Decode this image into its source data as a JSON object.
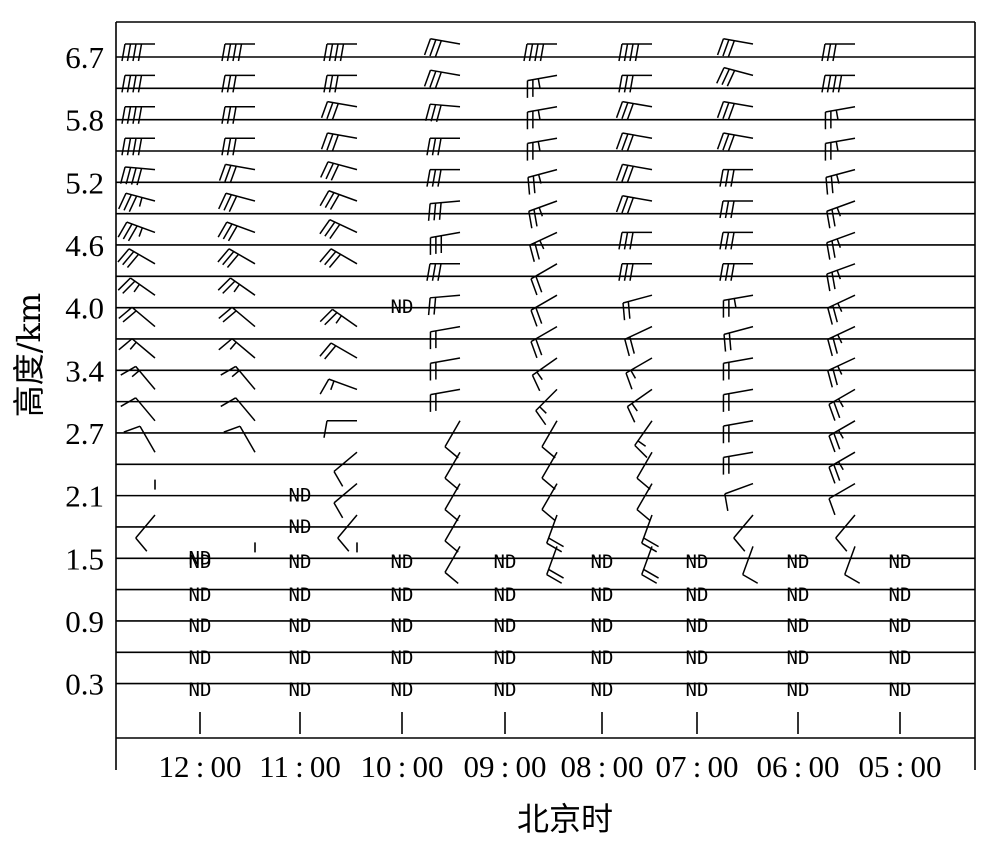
{
  "chart_data": {
    "type": "wind-profile",
    "title": "",
    "xlabel": "北京时",
    "ylabel": "高度/km",
    "x_categories": [
      "12:00",
      "11:00",
      "10:00",
      "09:00",
      "08:00",
      "07:00",
      "06:00",
      "05:00"
    ],
    "y_tick_labels": [
      "6.7",
      "5.8",
      "5.2",
      "4.6",
      "4.0",
      "3.4",
      "2.7",
      "2.1",
      "1.5",
      "0.9",
      "0.3"
    ],
    "levels_km": [
      6.7,
      6.4,
      6.1,
      5.8,
      5.5,
      5.2,
      4.9,
      4.6,
      4.3,
      4.0,
      3.7,
      3.4,
      3.0,
      2.7,
      2.4,
      2.1,
      1.8,
      1.5,
      1.2,
      0.9,
      0.6,
      0.3
    ],
    "no_data_marker": "ND",
    "wind_barbs": {
      "note": "each series lists [direction_deg, speed_m_s] per level, top (6.7 km) to bottom (0.3 km); null = ND",
      "series": [
        {
          "time": "12:00",
          "barbs": [
            [
              270,
              16
            ],
            [
              270,
              16
            ],
            [
              270,
              16
            ],
            [
              270,
              16
            ],
            [
              275,
              16
            ],
            [
              285,
              14
            ],
            [
              290,
              14
            ],
            [
              300,
              12
            ],
            [
              305,
              10
            ],
            [
              310,
              8
            ],
            [
              310,
              6
            ],
            [
              320,
              6
            ],
            [
              320,
              4
            ],
            [
              330,
              4
            ],
            [
              0,
              0
            ],
            [
              220,
              4
            ],
            [
              null,
              null
            ],
            [
              null,
              null
            ],
            [
              null,
              null
            ],
            [
              null,
              null
            ],
            [
              null,
              null
            ],
            [
              null,
              null
            ]
          ]
        },
        {
          "time": "11:00",
          "barbs": [
            [
              270,
              16
            ],
            [
              270,
              12
            ],
            [
              270,
              12
            ],
            [
              270,
              12
            ],
            [
              280,
              12
            ],
            [
              285,
              12
            ],
            [
              290,
              12
            ],
            [
              300,
              12
            ],
            [
              305,
              10
            ],
            [
              310,
              8
            ],
            [
              310,
              6
            ],
            [
              320,
              6
            ],
            [
              320,
              4
            ],
            [
              330,
              4
            ],
            [
              null,
              null
            ],
            [
              null,
              null
            ],
            [
              0,
              0
            ],
            [
              null,
              null
            ],
            [
              null,
              null
            ],
            [
              null,
              null
            ],
            [
              null,
              null
            ],
            [
              null,
              null
            ]
          ]
        },
        {
          "time": "10:00",
          "barbs": [
            [
              270,
              16
            ],
            [
              270,
              12
            ],
            [
              280,
              12
            ],
            [
              280,
              12
            ],
            [
              285,
              12
            ],
            [
              290,
              12
            ],
            [
              295,
              12
            ],
            [
              300,
              12
            ],
            [
              null,
              null
            ],
            [
              305,
              10
            ],
            [
              300,
              8
            ],
            [
              290,
              6
            ],
            [
              270,
              4
            ],
            [
              230,
              4
            ],
            [
              230,
              4
            ],
            [
              220,
              4
            ],
            [
              0,
              0
            ],
            [
              null,
              null
            ],
            [
              null,
              null
            ],
            [
              null,
              null
            ],
            [
              null,
              null
            ],
            [
              null,
              null
            ]
          ]
        },
        {
          "time": "09:00",
          "barbs": [
            [
              280,
              12
            ],
            [
              280,
              12
            ],
            [
              275,
              12
            ],
            [
              270,
              12
            ],
            [
              270,
              12
            ],
            [
              265,
              12
            ],
            [
              260,
              12
            ],
            [
              270,
              12
            ],
            [
              265,
              8
            ],
            [
              260,
              8
            ],
            [
              260,
              8
            ],
            [
              260,
              8
            ],
            [
              210,
              4
            ],
            [
              210,
              4
            ],
            [
              210,
              4
            ],
            [
              210,
              4
            ],
            [
              210,
              4
            ],
            [
              null,
              null
            ],
            [
              null,
              null
            ],
            [
              null,
              null
            ],
            [
              null,
              null
            ],
            [
              null,
              null
            ]
          ]
        },
        {
          "time": "08:00",
          "barbs": [
            [
              270,
              16
            ],
            [
              260,
              10
            ],
            [
              260,
              10
            ],
            [
              260,
              10
            ],
            [
              255,
              10
            ],
            [
              250,
              10
            ],
            [
              245,
              10
            ],
            [
              240,
              8
            ],
            [
              240,
              8
            ],
            [
              240,
              8
            ],
            [
              235,
              6
            ],
            [
              225,
              6
            ],
            [
              210,
              4
            ],
            [
              210,
              4
            ],
            [
              210,
              4
            ],
            [
              200,
              8
            ],
            [
              200,
              8
            ],
            [
              null,
              null
            ],
            [
              null,
              null
            ],
            [
              null,
              null
            ],
            [
              null,
              null
            ],
            [
              null,
              null
            ]
          ]
        },
        {
          "time": "07:00",
          "barbs": [
            [
              270,
              16
            ],
            [
              270,
              12
            ],
            [
              280,
              12
            ],
            [
              280,
              12
            ],
            [
              280,
              12
            ],
            [
              280,
              12
            ],
            [
              270,
              12
            ],
            [
              270,
              12
            ],
            [
              255,
              8
            ],
            [
              245,
              8
            ],
            [
              240,
              6
            ],
            [
              235,
              6
            ],
            [
              215,
              6
            ],
            [
              210,
              4
            ],
            [
              210,
              4
            ],
            [
              200,
              8
            ],
            [
              200,
              8
            ],
            [
              null,
              null
            ],
            [
              null,
              null
            ],
            [
              null,
              null
            ],
            [
              null,
              null
            ],
            [
              null,
              null
            ]
          ]
        },
        {
          "time": "06:00",
          "barbs": [
            [
              280,
              12
            ],
            [
              285,
              12
            ],
            [
              280,
              12
            ],
            [
              280,
              12
            ],
            [
              270,
              12
            ],
            [
              270,
              12
            ],
            [
              270,
              12
            ],
            [
              270,
              12
            ],
            [
              260,
              10
            ],
            [
              255,
              8
            ],
            [
              260,
              8
            ],
            [
              260,
              8
            ],
            [
              260,
              8
            ],
            [
              260,
              8
            ],
            [
              250,
              4
            ],
            [
              220,
              4
            ],
            [
              200,
              4
            ],
            [
              null,
              null
            ],
            [
              null,
              null
            ],
            [
              null,
              null
            ],
            [
              null,
              null
            ],
            [
              null,
              null
            ]
          ]
        },
        {
          "time": "05:00",
          "barbs": [
            [
              270,
              12
            ],
            [
              270,
              16
            ],
            [
              260,
              10
            ],
            [
              260,
              10
            ],
            [
              255,
              10
            ],
            [
              250,
              10
            ],
            [
              250,
              10
            ],
            [
              250,
              10
            ],
            [
              245,
              10
            ],
            [
              245,
              10
            ],
            [
              245,
              10
            ],
            [
              240,
              10
            ],
            [
              240,
              10
            ],
            [
              240,
              10
            ],
            [
              240,
              4
            ],
            [
              220,
              4
            ],
            [
              200,
              4
            ],
            [
              null,
              null
            ],
            [
              null,
              null
            ],
            [
              null,
              null
            ],
            [
              null,
              null
            ],
            [
              null,
              null
            ]
          ]
        }
      ]
    },
    "grid": true,
    "legend": "none"
  }
}
